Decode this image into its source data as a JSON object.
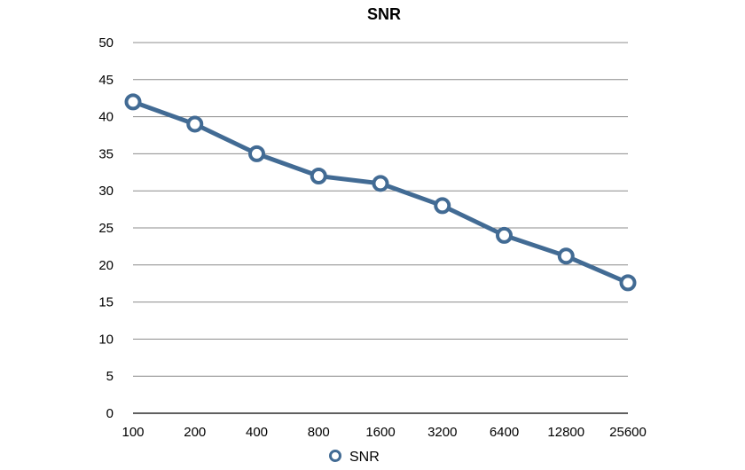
{
  "chart_data": {
    "type": "line",
    "title": "SNR",
    "xlabel": "",
    "ylabel": "",
    "categories": [
      "100",
      "200",
      "400",
      "800",
      "1600",
      "3200",
      "6400",
      "12800",
      "25600"
    ],
    "series": [
      {
        "name": "SNR",
        "values": [
          42,
          39,
          35,
          32,
          31,
          28,
          24,
          21.2,
          17.6
        ]
      }
    ],
    "ylim": [
      0,
      50
    ],
    "yticks": [
      "0",
      "5",
      "10",
      "15",
      "20",
      "25",
      "30",
      "35",
      "40",
      "45",
      "50"
    ],
    "grid": true,
    "legend": "bottom",
    "colors": {
      "series": "#426b94",
      "marker_fill": "#ffffff",
      "grid": "#8c8c8c"
    }
  }
}
